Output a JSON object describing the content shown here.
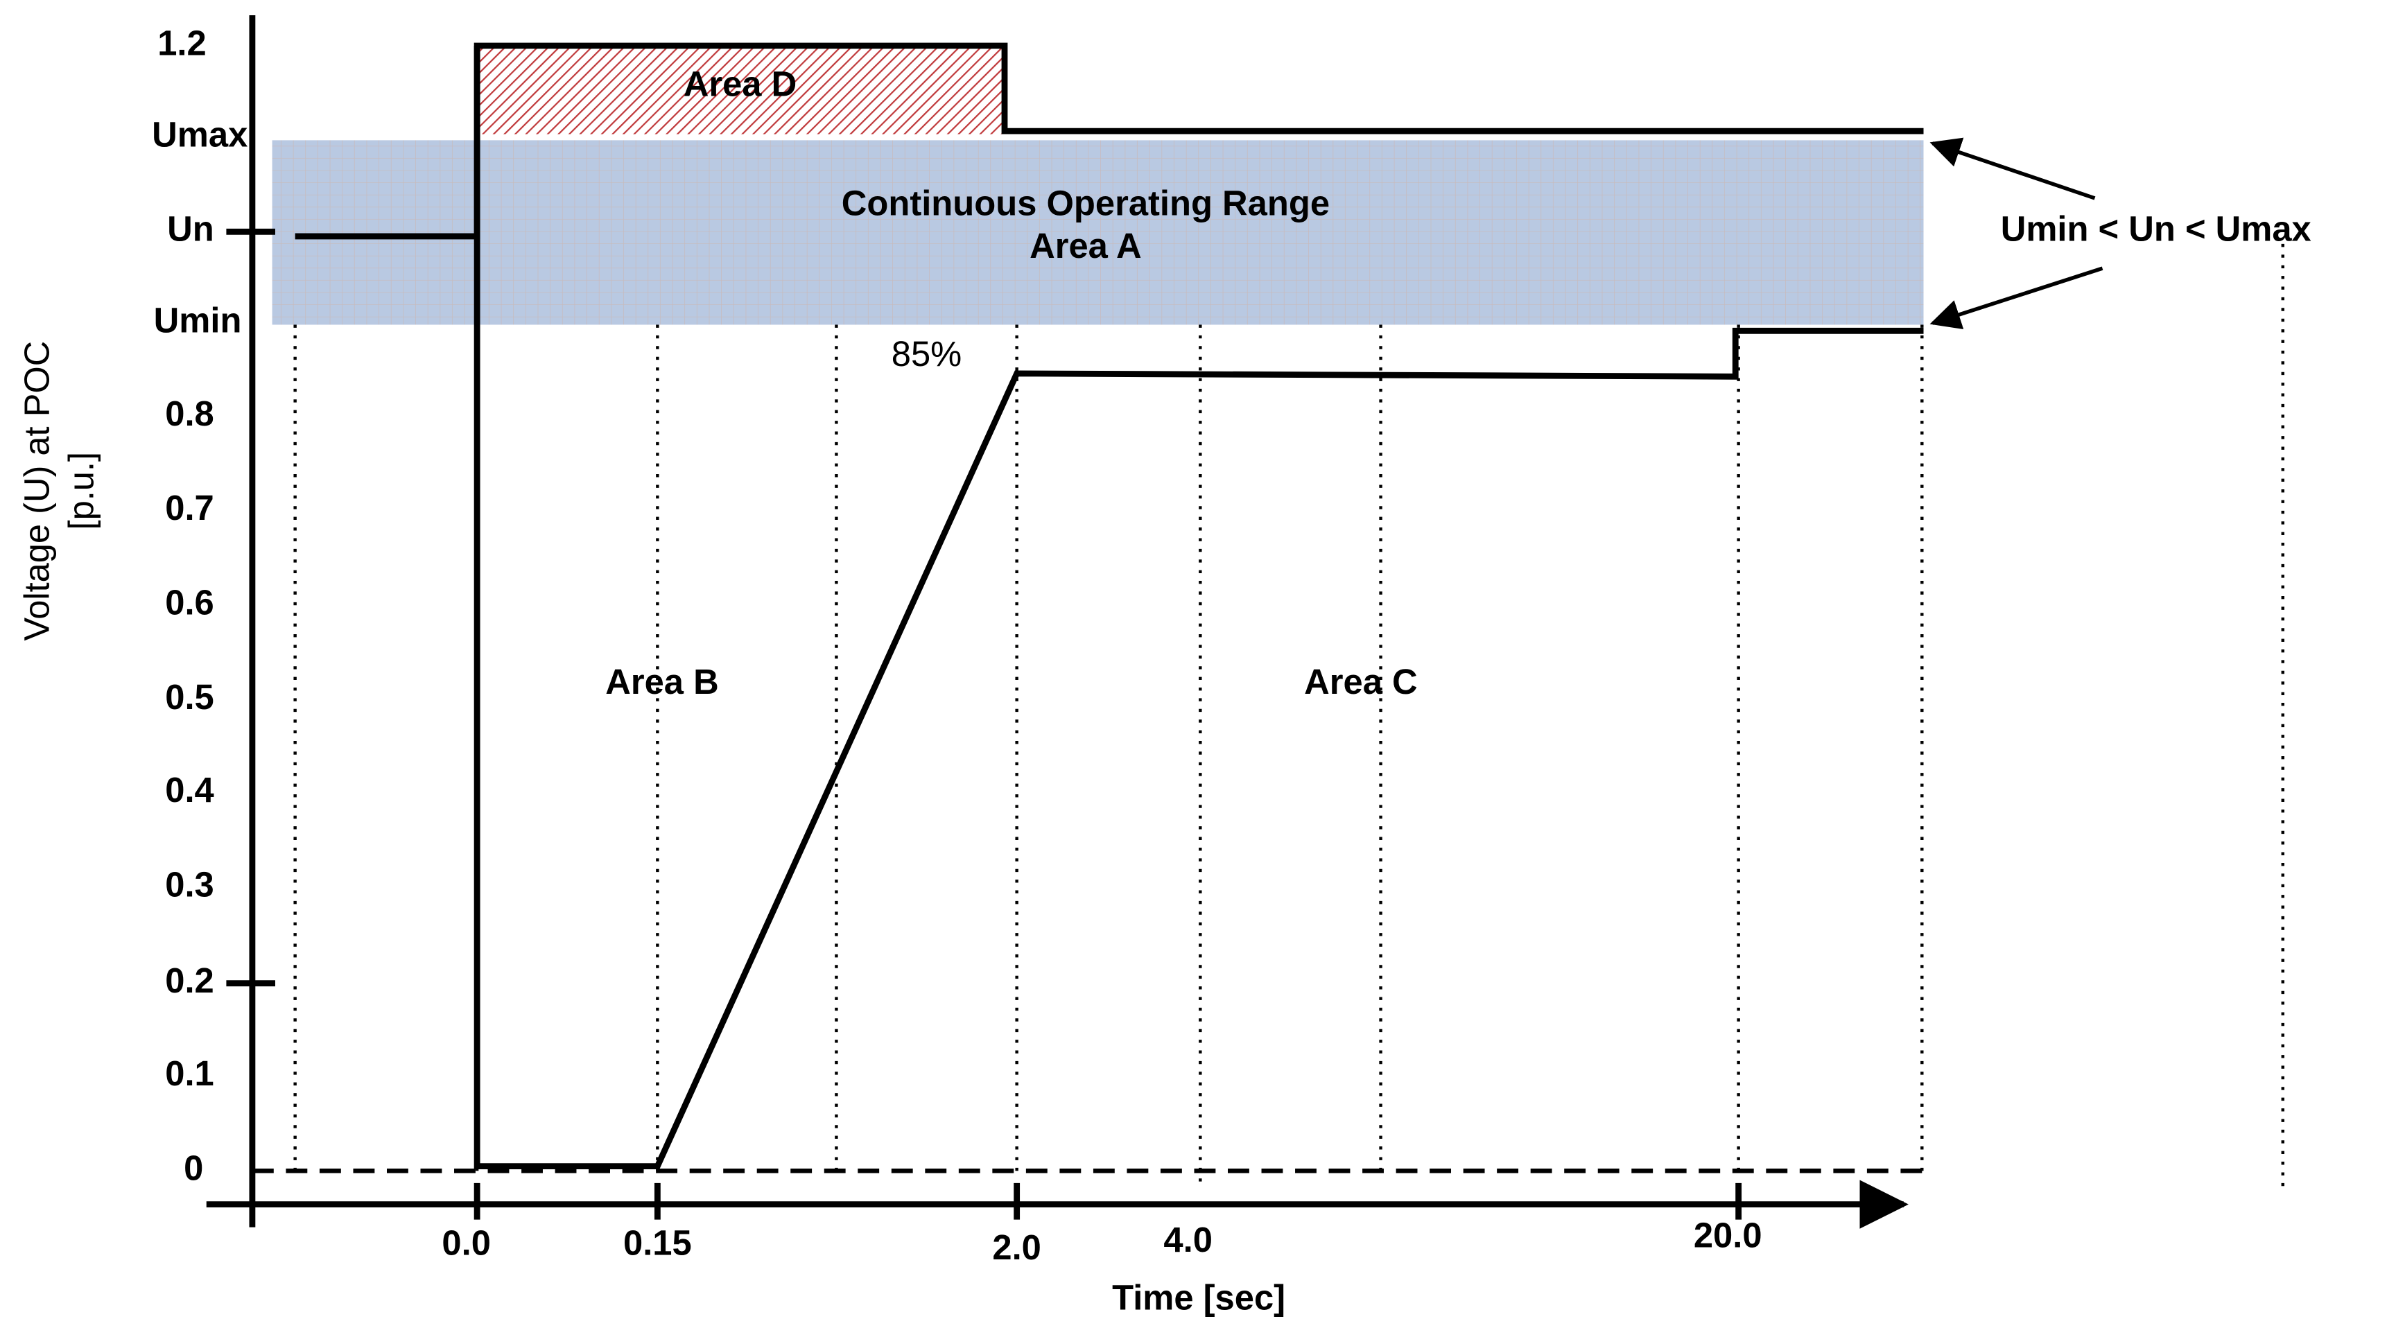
{
  "diagram": {
    "y_axis_title": [
      "Voltage (U)  at POC",
      "[p.u.]"
    ],
    "x_axis_title": "Time [sec]",
    "y_labels": [
      "1.2",
      "Umax",
      "Un",
      "Umin",
      "0.8",
      "0.7",
      "0.6",
      "0.5",
      "0.4",
      "0.3",
      "0.2",
      "0.1",
      "0"
    ],
    "x_labels": [
      "0.0",
      "0.15",
      "2.0",
      "4.0",
      "20.0"
    ],
    "area_a": [
      "Continuous Operating Range",
      "Area A"
    ],
    "area_b": "Area B",
    "area_c": "Area C",
    "area_d": "Area D",
    "percent_label": "85%",
    "range_note": "Umin < Un < Umax"
  }
}
